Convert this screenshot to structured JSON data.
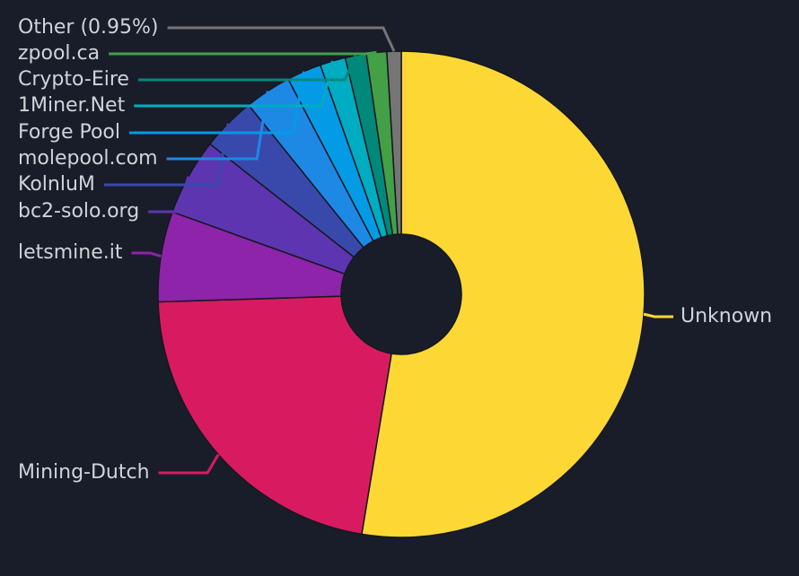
{
  "chart_data": {
    "type": "donut",
    "categories": [
      "Unknown",
      "Mining-Dutch",
      "letsmine.it",
      "bc2-solo.org",
      "KolnluM",
      "molepool.com",
      "Forge Pool",
      "1Miner.Net",
      "Crypto-Eire",
      "zpool.ca",
      "Other (0.95%)"
    ],
    "values": [
      52.6,
      21.9,
      6.0,
      5.1,
      3.6,
      3.1,
      2.3,
      1.7,
      1.4,
      1.35,
      0.95
    ],
    "colors": [
      "#fdd835",
      "#d81b60",
      "#8e24aa",
      "#5e35b1",
      "#3949ab",
      "#1e88e5",
      "#039be5",
      "#00acc1",
      "#00897b",
      "#43a047",
      "#757575"
    ]
  }
}
